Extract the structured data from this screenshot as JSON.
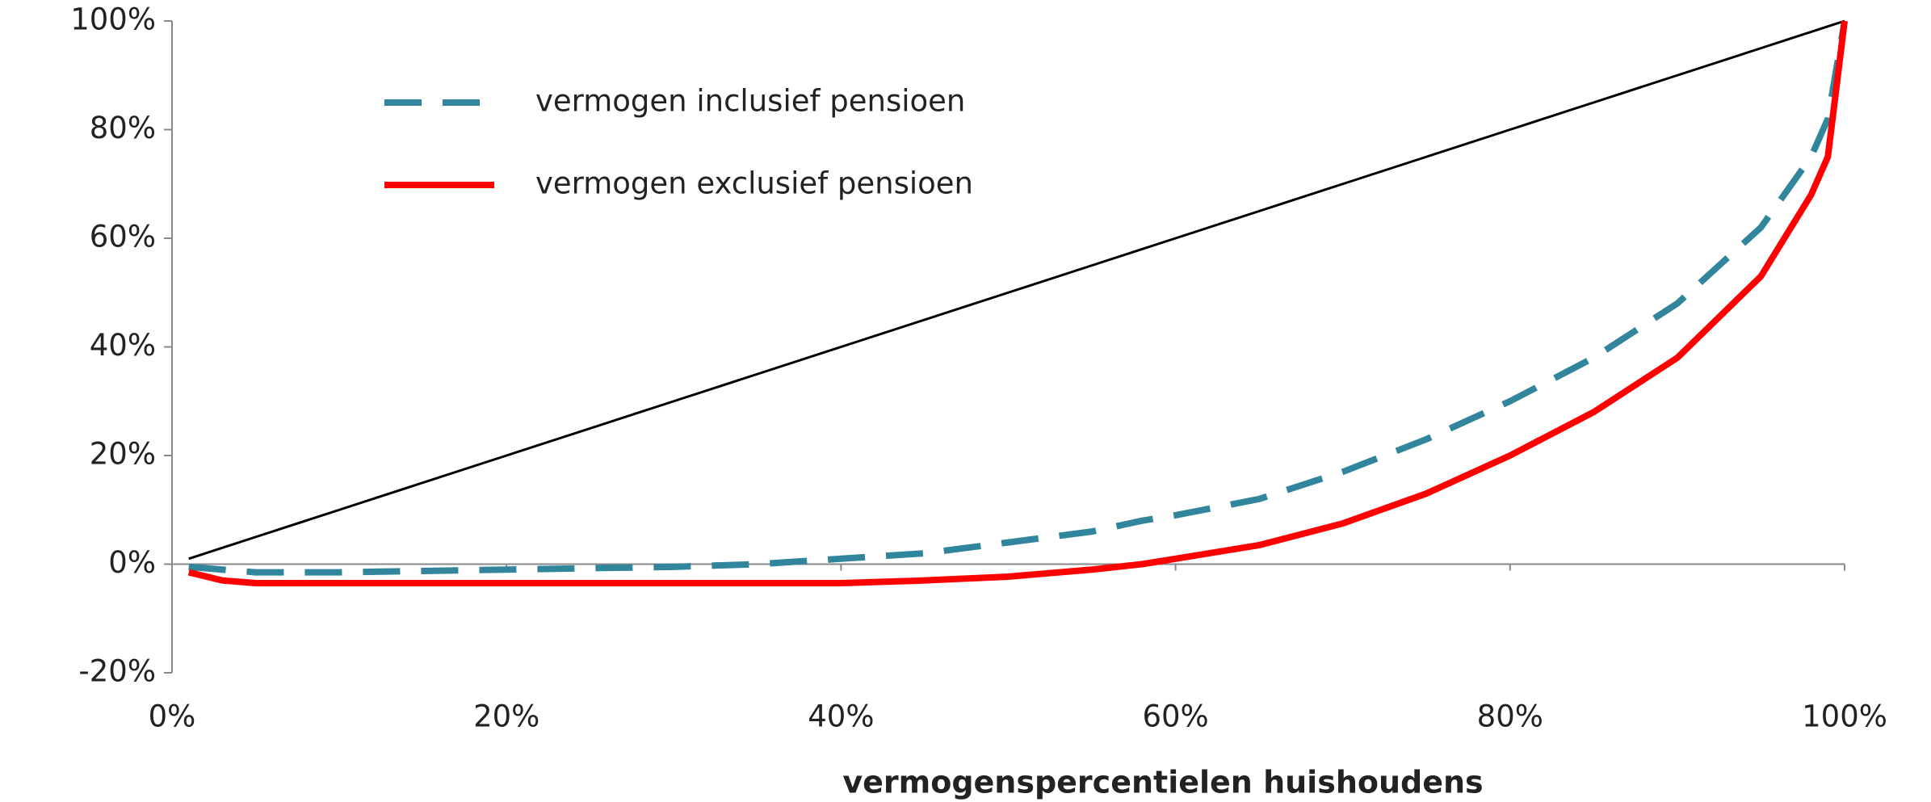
{
  "chart_data": {
    "type": "line",
    "xlabel": "vermogenspercentielen huishoudens",
    "x": [
      1,
      3,
      5,
      10,
      20,
      30,
      35,
      40,
      45,
      50,
      55,
      58,
      60,
      65,
      70,
      75,
      80,
      85,
      90,
      95,
      98,
      99,
      100
    ],
    "series": [
      {
        "color": "#000000",
        "dash": "solid",
        "values": [
          1,
          3,
          5,
          10,
          20,
          30,
          35,
          40,
          45,
          50,
          55,
          58,
          60,
          65,
          70,
          75,
          80,
          85,
          90,
          95,
          98,
          99,
          100
        ]
      },
      {
        "name": "vermogen inclusief pensioen",
        "color": "#31859c",
        "dash": "dashed",
        "values": [
          -0.5,
          -1,
          -1.5,
          -1.5,
          -1,
          -0.5,
          0,
          1,
          2,
          4,
          6,
          8,
          9,
          12,
          17,
          23,
          30,
          38,
          48,
          62,
          75,
          82,
          100
        ]
      },
      {
        "name": "vermogen exclusief pensioen",
        "color": "#ff0000",
        "dash": "solid",
        "values": [
          -1.5,
          -3,
          -3.5,
          -3.5,
          -3.5,
          -3.5,
          -3.5,
          -3.5,
          -3,
          -2.3,
          -1,
          0,
          1,
          3.5,
          7.5,
          13,
          20,
          28,
          38,
          53,
          68,
          75,
          100
        ]
      }
    ],
    "xlim": [
      0,
      100
    ],
    "xticks": [
      {
        "value": 0,
        "label": "0%"
      },
      {
        "value": 20,
        "label": "20%"
      },
      {
        "value": 40,
        "label": "40%"
      },
      {
        "value": 60,
        "label": "60%"
      },
      {
        "value": 80,
        "label": "80%"
      },
      {
        "value": 100,
        "label": "100%"
      }
    ],
    "ylim": [
      -20,
      100
    ],
    "yticks": [
      {
        "value": -20,
        "label": "-20%"
      },
      {
        "value": 0,
        "label": "0%"
      },
      {
        "value": 20,
        "label": "20%"
      },
      {
        "value": 40,
        "label": "40%"
      },
      {
        "value": 60,
        "label": "60%"
      },
      {
        "value": 80,
        "label": "80%"
      },
      {
        "value": 100,
        "label": "100%"
      }
    ],
    "grid": false,
    "legend": "upper left"
  }
}
